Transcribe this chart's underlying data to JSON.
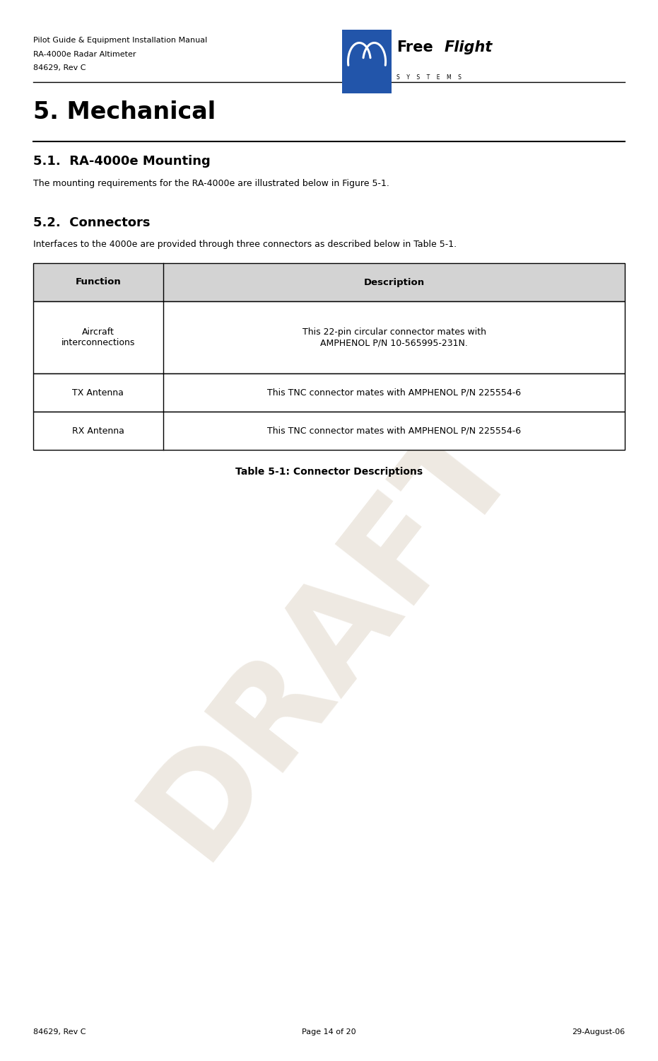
{
  "header_left_lines": [
    "Pilot Guide & Equipment Installation Manual",
    "RA-4000e Radar Altimeter",
    "84629, Rev C"
  ],
  "section_title": "5. Mechanical",
  "sub1_title": "5.1.  RA-4000e Mounting",
  "sub1_body": "The mounting requirements for the RA-4000e are illustrated below in Figure 5-1.",
  "sub2_title": "5.2.  Connectors",
  "sub2_body": "Interfaces to the 4000e are provided through three connectors as described below in Table 5-1.",
  "table_headers": [
    "Function",
    "Description"
  ],
  "table_rows": [
    [
      "Aircraft\ninterconnections",
      "This 22-pin circular connector mates with\nAMPHENOL P/N 10-565995-231N."
    ],
    [
      "TX Antenna",
      "This TNC connector mates with AMPHENOL P/N 225554-6"
    ],
    [
      "RX Antenna",
      "This TNC connector mates with AMPHENOL P/N 225554-6"
    ]
  ],
  "table_caption": "Table 5-1: Connector Descriptions",
  "footer_left": "84629, Rev C",
  "footer_center": "Page 14 of 20",
  "footer_right": "29-August-06",
  "bg_color": "#ffffff",
  "table_header_bg": "#d3d3d3",
  "table_border_color": "#000000",
  "draft_color": "#c8b8a0",
  "draft_text": "DRAFT",
  "logo_blue": "#2255aa"
}
